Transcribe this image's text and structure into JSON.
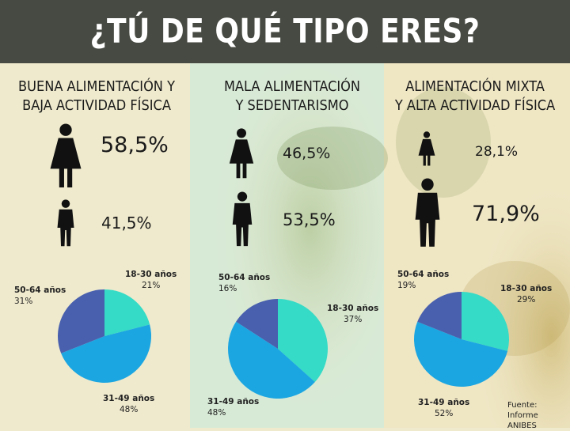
{
  "title": "¿TÚ DE QUÉ TIPO ERES?",
  "colors": {
    "header_bg": "#474a42",
    "slice_18_30": "#35dbc6",
    "slice_31_49": "#1ba6e2",
    "slice_50_64": "#4960ae",
    "person_icon": "#111111"
  },
  "columns": [
    {
      "title_lines": [
        "BUENA ALIMENTACIÓN Y",
        "BAJA ACTIVIDAD FÍSICA"
      ],
      "female_pct": "58,5%",
      "male_pct": "41,5%"
    },
    {
      "title_lines": [
        "MALA ALIMENTACIÓN",
        "Y SEDENTARISMO"
      ],
      "female_pct": "46,5%",
      "male_pct": "53,5%"
    },
    {
      "title_lines": [
        "ALIMENTACIÓN MIXTA",
        "Y ALTA ACTIVIDAD FÍSICA"
      ],
      "female_pct": "28,1%",
      "male_pct": "71,9%"
    }
  ],
  "chart_data": [
    {
      "type": "pie",
      "series": [
        {
          "label": "18-30 años",
          "value": 21,
          "display": "21%"
        },
        {
          "label": "31-49 años",
          "value": 48,
          "display": "48%"
        },
        {
          "label": "50-64 años",
          "value": 31,
          "display": "31%"
        }
      ]
    },
    {
      "type": "pie",
      "series": [
        {
          "label": "18-30 años",
          "value": 37,
          "display": "37%"
        },
        {
          "label": "31-49 años",
          "value": 48,
          "display": "48%"
        },
        {
          "label": "50-64 años",
          "value": 16,
          "display": "16%"
        }
      ]
    },
    {
      "type": "pie",
      "series": [
        {
          "label": "18-30 años",
          "value": 29,
          "display": "29%"
        },
        {
          "label": "31-49 años",
          "value": 52,
          "display": "52%"
        },
        {
          "label": "50-64 años",
          "value": 19,
          "display": "19%"
        }
      ]
    }
  ],
  "source": {
    "line1": "Fuente: Informe",
    "line2": "ANIBES"
  }
}
